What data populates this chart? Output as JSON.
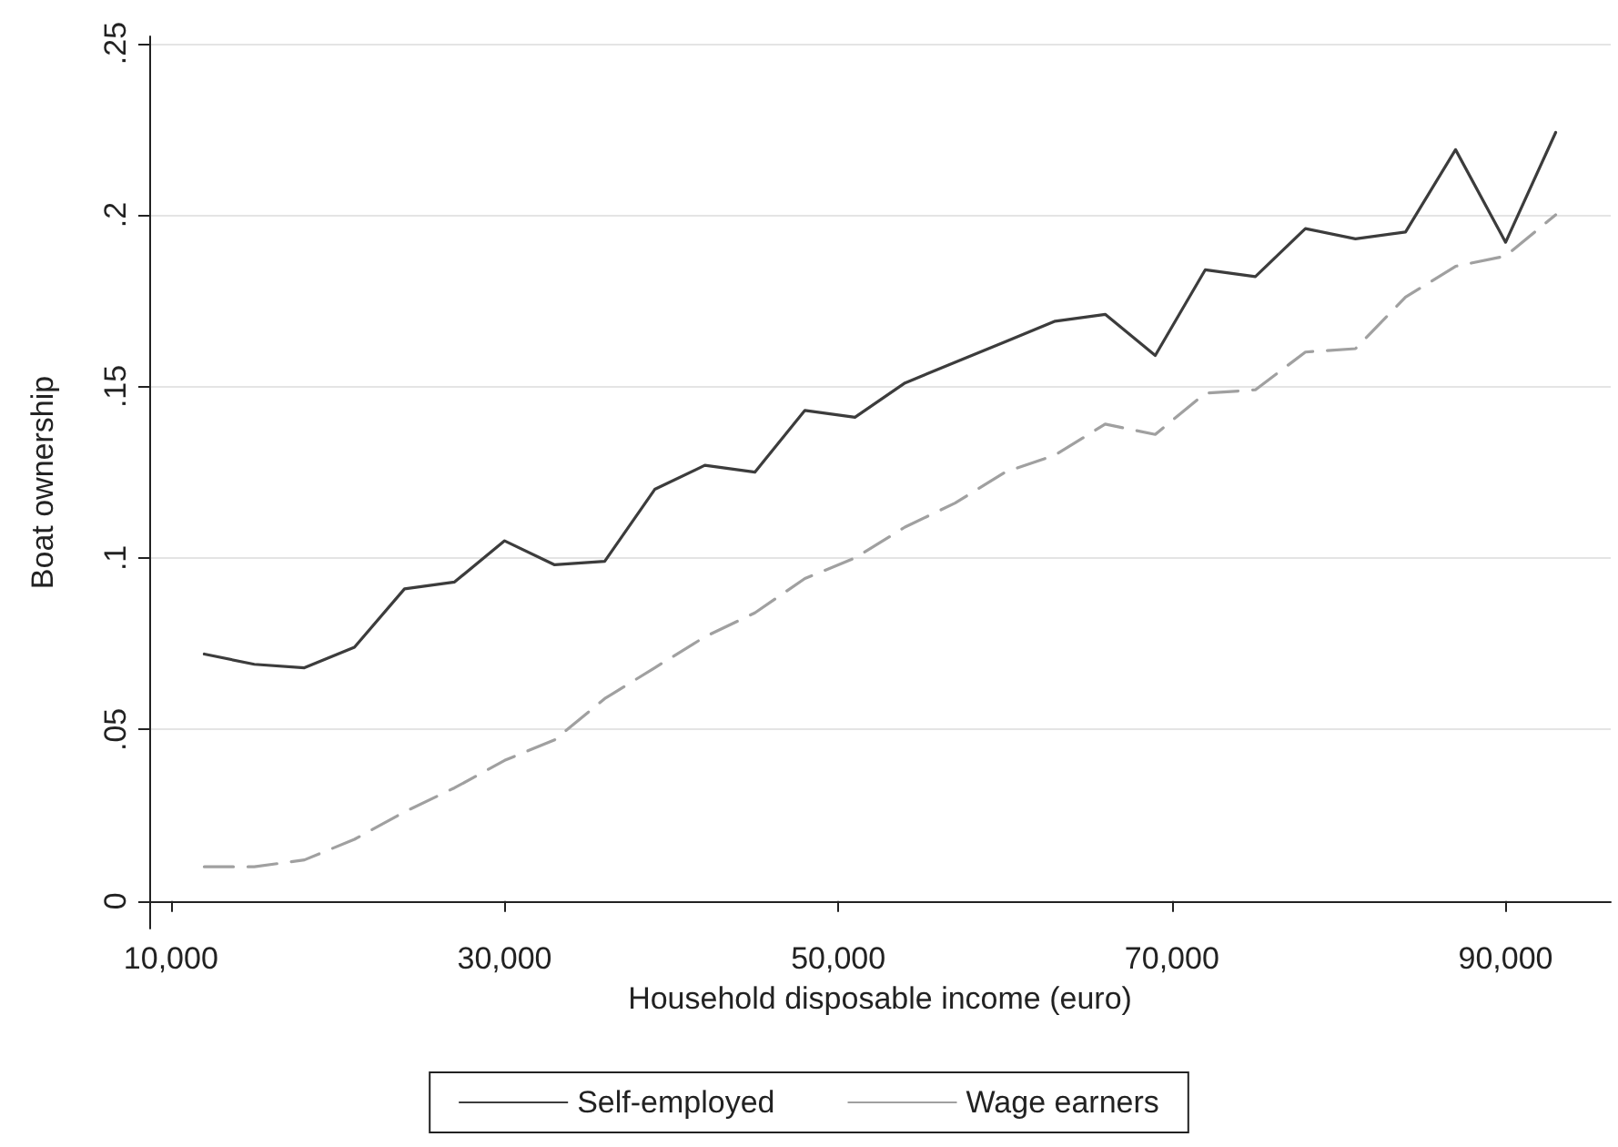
{
  "chart_data": {
    "type": "line",
    "xlabel": "Household disposable income (euro)",
    "ylabel": "Boat ownership",
    "x": [
      12000,
      15000,
      18000,
      21000,
      24000,
      27000,
      30000,
      33000,
      36000,
      39000,
      42000,
      45000,
      48000,
      51000,
      54000,
      57000,
      60000,
      63000,
      66000,
      69000,
      72000,
      75000,
      78000,
      81000,
      84000,
      87000,
      90000,
      93000
    ],
    "series": [
      {
        "name": "Self-employed",
        "color": "#3c3c3c",
        "line_style": "solid",
        "values": [
          0.072,
          0.069,
          0.068,
          0.074,
          0.091,
          0.093,
          0.105,
          0.098,
          0.099,
          0.12,
          0.127,
          0.125,
          0.143,
          0.141,
          0.151,
          0.157,
          0.163,
          0.169,
          0.171,
          0.159,
          0.184,
          0.182,
          0.196,
          0.193,
          0.195,
          0.219,
          0.192,
          0.224
        ]
      },
      {
        "name": "Wage earners",
        "color": "#a0a0a0",
        "line_style": "dashed",
        "values": [
          0.01,
          0.01,
          0.012,
          0.018,
          0.026,
          0.033,
          0.041,
          0.047,
          0.059,
          0.068,
          0.077,
          0.084,
          0.094,
          0.1,
          0.109,
          0.116,
          0.125,
          0.13,
          0.139,
          0.136,
          0.148,
          0.149,
          0.16,
          0.161,
          0.176,
          0.185,
          0.188,
          0.2
        ]
      }
    ],
    "xlim": [
      8700,
      96300
    ],
    "xticks": [
      {
        "value": 10000,
        "label": "10,000"
      },
      {
        "value": 30000,
        "label": "30,000"
      },
      {
        "value": 50000,
        "label": "50,000"
      },
      {
        "value": 70000,
        "label": "70,000"
      },
      {
        "value": 90000,
        "label": "90,000"
      }
    ],
    "ylim": [
      -0.008,
      0.252
    ],
    "yticks": [
      {
        "value": 0,
        "label": "0"
      },
      {
        "value": 0.05,
        "label": ".05"
      },
      {
        "value": 0.1,
        "label": ".1"
      },
      {
        "value": 0.15,
        "label": ".15"
      },
      {
        "value": 0.2,
        "label": ".2"
      },
      {
        "value": 0.25,
        "label": ".25"
      }
    ],
    "grid": "y",
    "legend": "bottom",
    "marker": "none"
  }
}
